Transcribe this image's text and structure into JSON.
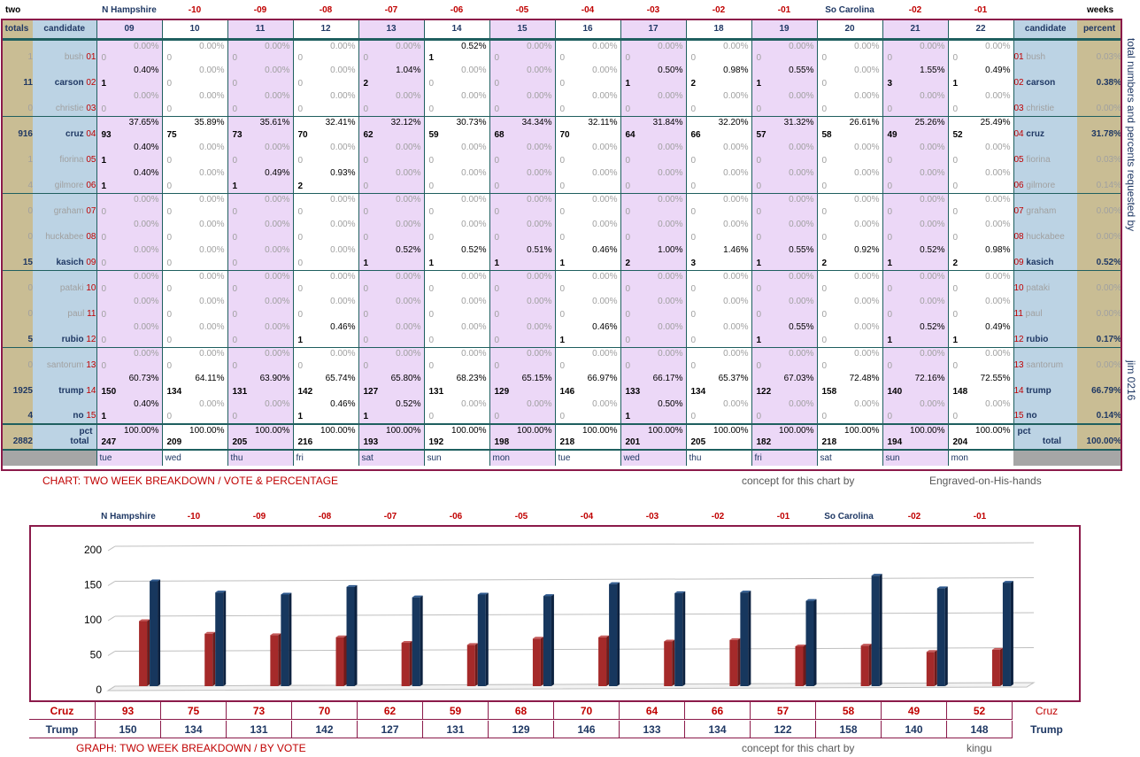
{
  "header": {
    "left": "two",
    "right": "weeks",
    "top_labels": [
      "N Hampshire",
      "-10",
      "-09",
      "-08",
      "-07",
      "-06",
      "-05",
      "-04",
      "-03",
      "-02",
      "-01",
      "So Carolina",
      "-02",
      "-01"
    ]
  },
  "table": {
    "col_totals": "totals",
    "col_candidate": "candidate",
    "col_percent": "percent",
    "days": [
      "09",
      "10",
      "11",
      "12",
      "13",
      "14",
      "15",
      "16",
      "17",
      "18",
      "19",
      "20",
      "21",
      "22"
    ],
    "weekdays": [
      "tue",
      "wed",
      "thu",
      "fri",
      "sat",
      "sun",
      "mon",
      "tue",
      "wed",
      "thu",
      "fri",
      "sat",
      "sun",
      "mon"
    ],
    "candidates": [
      {
        "num": "01",
        "name": "bush",
        "total": "1",
        "percent": "0.03%",
        "votes": [
          "0",
          "0",
          "0",
          "0",
          "0",
          "1",
          "0",
          "0",
          "0",
          "0",
          "0",
          "0",
          "0",
          "0"
        ],
        "pcts": [
          "0.00%",
          "0.00%",
          "0.00%",
          "0.00%",
          "0.00%",
          "0.52%",
          "0.00%",
          "0.00%",
          "0.00%",
          "0.00%",
          "0.00%",
          "0.00%",
          "0.00%",
          "0.00%"
        ]
      },
      {
        "num": "02",
        "name": "carson",
        "total": "11",
        "percent": "0.38%",
        "votes": [
          "1",
          "0",
          "0",
          "0",
          "2",
          "0",
          "0",
          "0",
          "1",
          "2",
          "1",
          "0",
          "3",
          "1"
        ],
        "pcts": [
          "0.40%",
          "0.00%",
          "0.00%",
          "0.00%",
          "1.04%",
          "0.00%",
          "0.00%",
          "0.00%",
          "0.50%",
          "0.98%",
          "0.55%",
          "0.00%",
          "1.55%",
          "0.49%"
        ]
      },
      {
        "num": "03",
        "name": "christie",
        "total": "0",
        "percent": "0.00%",
        "votes": [
          "0",
          "0",
          "0",
          "0",
          "0",
          "0",
          "0",
          "0",
          "0",
          "0",
          "0",
          "0",
          "0",
          "0"
        ],
        "pcts": [
          "0.00%",
          "0.00%",
          "0.00%",
          "0.00%",
          "0.00%",
          "0.00%",
          "0.00%",
          "0.00%",
          "0.00%",
          "0.00%",
          "0.00%",
          "0.00%",
          "0.00%",
          "0.00%"
        ]
      },
      {
        "num": "04",
        "name": "cruz",
        "total": "916",
        "percent": "31.78%",
        "votes": [
          "93",
          "75",
          "73",
          "70",
          "62",
          "59",
          "68",
          "70",
          "64",
          "66",
          "57",
          "58",
          "49",
          "52"
        ],
        "pcts": [
          "37.65%",
          "35.89%",
          "35.61%",
          "32.41%",
          "32.12%",
          "30.73%",
          "34.34%",
          "32.11%",
          "31.84%",
          "32.20%",
          "31.32%",
          "26.61%",
          "25.26%",
          "25.49%"
        ]
      },
      {
        "num": "05",
        "name": "fiorina",
        "total": "1",
        "percent": "0.03%",
        "votes": [
          "1",
          "0",
          "0",
          "0",
          "0",
          "0",
          "0",
          "0",
          "0",
          "0",
          "0",
          "0",
          "0",
          "0"
        ],
        "pcts": [
          "0.40%",
          "0.00%",
          "0.00%",
          "0.00%",
          "0.00%",
          "0.00%",
          "0.00%",
          "0.00%",
          "0.00%",
          "0.00%",
          "0.00%",
          "0.00%",
          "0.00%",
          "0.00%"
        ]
      },
      {
        "num": "06",
        "name": "gilmore",
        "total": "4",
        "percent": "0.14%",
        "votes": [
          "1",
          "0",
          "1",
          "2",
          "0",
          "0",
          "0",
          "0",
          "0",
          "0",
          "0",
          "0",
          "0",
          "0"
        ],
        "pcts": [
          "0.40%",
          "0.00%",
          "0.49%",
          "0.93%",
          "0.00%",
          "0.00%",
          "0.00%",
          "0.00%",
          "0.00%",
          "0.00%",
          "0.00%",
          "0.00%",
          "0.00%",
          "0.00%"
        ]
      },
      {
        "num": "07",
        "name": "graham",
        "total": "0",
        "percent": "0.00%",
        "votes": [
          "0",
          "0",
          "0",
          "0",
          "0",
          "0",
          "0",
          "0",
          "0",
          "0",
          "0",
          "0",
          "0",
          "0"
        ],
        "pcts": [
          "0.00%",
          "0.00%",
          "0.00%",
          "0.00%",
          "0.00%",
          "0.00%",
          "0.00%",
          "0.00%",
          "0.00%",
          "0.00%",
          "0.00%",
          "0.00%",
          "0.00%",
          "0.00%"
        ]
      },
      {
        "num": "08",
        "name": "huckabee",
        "total": "0",
        "percent": "0.00%",
        "votes": [
          "0",
          "0",
          "0",
          "0",
          "0",
          "0",
          "0",
          "0",
          "0",
          "0",
          "0",
          "0",
          "0",
          "0"
        ],
        "pcts": [
          "0.00%",
          "0.00%",
          "0.00%",
          "0.00%",
          "0.00%",
          "0.00%",
          "0.00%",
          "0.00%",
          "0.00%",
          "0.00%",
          "0.00%",
          "0.00%",
          "0.00%",
          "0.00%"
        ]
      },
      {
        "num": "09",
        "name": "kasich",
        "total": "15",
        "percent": "0.52%",
        "votes": [
          "0",
          "0",
          "0",
          "0",
          "1",
          "1",
          "1",
          "1",
          "2",
          "3",
          "1",
          "2",
          "1",
          "2"
        ],
        "pcts": [
          "0.00%",
          "0.00%",
          "0.00%",
          "0.00%",
          "0.52%",
          "0.52%",
          "0.51%",
          "0.46%",
          "1.00%",
          "1.46%",
          "0.55%",
          "0.92%",
          "0.52%",
          "0.98%"
        ]
      },
      {
        "num": "10",
        "name": "pataki",
        "total": "0",
        "percent": "0.00%",
        "votes": [
          "0",
          "0",
          "0",
          "0",
          "0",
          "0",
          "0",
          "0",
          "0",
          "0",
          "0",
          "0",
          "0",
          "0"
        ],
        "pcts": [
          "0.00%",
          "0.00%",
          "0.00%",
          "0.00%",
          "0.00%",
          "0.00%",
          "0.00%",
          "0.00%",
          "0.00%",
          "0.00%",
          "0.00%",
          "0.00%",
          "0.00%",
          "0.00%"
        ]
      },
      {
        "num": "11",
        "name": "paul",
        "total": "0",
        "percent": "0.00%",
        "votes": [
          "0",
          "0",
          "0",
          "0",
          "0",
          "0",
          "0",
          "0",
          "0",
          "0",
          "0",
          "0",
          "0",
          "0"
        ],
        "pcts": [
          "0.00%",
          "0.00%",
          "0.00%",
          "0.00%",
          "0.00%",
          "0.00%",
          "0.00%",
          "0.00%",
          "0.00%",
          "0.00%",
          "0.00%",
          "0.00%",
          "0.00%",
          "0.00%"
        ]
      },
      {
        "num": "12",
        "name": "rubio",
        "total": "5",
        "percent": "0.17%",
        "votes": [
          "0",
          "0",
          "0",
          "1",
          "0",
          "0",
          "0",
          "1",
          "0",
          "0",
          "1",
          "0",
          "1",
          "1"
        ],
        "pcts": [
          "0.00%",
          "0.00%",
          "0.00%",
          "0.46%",
          "0.00%",
          "0.00%",
          "0.00%",
          "0.46%",
          "0.00%",
          "0.00%",
          "0.55%",
          "0.00%",
          "0.52%",
          "0.49%"
        ]
      },
      {
        "num": "13",
        "name": "santorum",
        "total": "0",
        "percent": "0.00%",
        "votes": [
          "0",
          "0",
          "0",
          "0",
          "0",
          "0",
          "0",
          "0",
          "0",
          "0",
          "0",
          "0",
          "0",
          "0"
        ],
        "pcts": [
          "0.00%",
          "0.00%",
          "0.00%",
          "0.00%",
          "0.00%",
          "0.00%",
          "0.00%",
          "0.00%",
          "0.00%",
          "0.00%",
          "0.00%",
          "0.00%",
          "0.00%",
          "0.00%"
        ]
      },
      {
        "num": "14",
        "name": "trump",
        "total": "1925",
        "percent": "66.79%",
        "votes": [
          "150",
          "134",
          "131",
          "142",
          "127",
          "131",
          "129",
          "146",
          "133",
          "134",
          "122",
          "158",
          "140",
          "148"
        ],
        "pcts": [
          "60.73%",
          "64.11%",
          "63.90%",
          "65.74%",
          "65.80%",
          "68.23%",
          "65.15%",
          "66.97%",
          "66.17%",
          "65.37%",
          "67.03%",
          "72.48%",
          "72.16%",
          "72.55%"
        ]
      },
      {
        "num": "15",
        "name": "no",
        "total": "4",
        "percent": "0.14%",
        "votes": [
          "1",
          "0",
          "0",
          "1",
          "1",
          "0",
          "0",
          "0",
          "1",
          "0",
          "0",
          "0",
          "0",
          "0"
        ],
        "pcts": [
          "0.40%",
          "0.00%",
          "0.00%",
          "0.46%",
          "0.52%",
          "0.00%",
          "0.00%",
          "0.00%",
          "0.50%",
          "0.00%",
          "0.00%",
          "0.00%",
          "0.00%",
          "0.00%"
        ]
      }
    ],
    "totals_row": {
      "total": "2882",
      "pct_label": "pct",
      "label": "total",
      "percent": "100.00%",
      "votes": [
        "247",
        "209",
        "205",
        "216",
        "193",
        "192",
        "198",
        "218",
        "201",
        "205",
        "182",
        "218",
        "194",
        "204"
      ],
      "pcts": [
        "100.00%",
        "100.00%",
        "100.00%",
        "100.00%",
        "100.00%",
        "100.00%",
        "100.00%",
        "100.00%",
        "100.00%",
        "100.00%",
        "100.00%",
        "100.00%",
        "100.00%",
        "100.00%"
      ]
    }
  },
  "side_text": {
    "requested": "total numbers and percents requested by",
    "author": "jim 0216"
  },
  "captions": {
    "chart_title": "CHART: TWO WEEK BREAKDOWN / VOTE & PERCENTAGE",
    "concept1": "concept for this chart by",
    "credit1": "Engraved-on-His-hands",
    "graph_title": "GRAPH: TWO WEEK BREAKDOWN / BY VOTE",
    "concept2": "concept for this chart by",
    "credit2": "kingu"
  },
  "chart_data": {
    "type": "bar",
    "categories": [
      "N Hampshire",
      "-10",
      "-09",
      "-08",
      "-07",
      "-06",
      "-05",
      "-04",
      "-03",
      "-02",
      "-01",
      "So Carolina",
      "-02",
      "-01"
    ],
    "series": [
      {
        "name": "Cruz",
        "values": [
          93,
          75,
          73,
          70,
          62,
          59,
          68,
          70,
          64,
          66,
          57,
          58,
          49,
          52
        ],
        "color": "#a52a2a"
      },
      {
        "name": "Trump",
        "values": [
          150,
          134,
          131,
          142,
          127,
          131,
          129,
          146,
          133,
          134,
          122,
          158,
          140,
          148
        ],
        "color": "#17375e"
      }
    ],
    "ylim": [
      0,
      200
    ],
    "yticks": [
      0,
      50,
      100,
      150,
      200
    ],
    "grid": true,
    "title": "",
    "xlabel": "",
    "ylabel": ""
  },
  "colors": {
    "frame": "#8b1a4a",
    "purple": "#ecd8f7",
    "blue": "#bcd3e4",
    "khaki": "#c9bd94"
  }
}
